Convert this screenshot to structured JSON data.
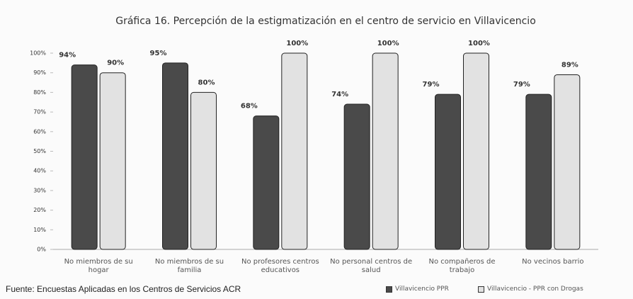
{
  "chart_data": {
    "type": "bar",
    "title": "Gráfica 16. Percepción de la estigmatización en el centro de servicio en Villavicencio",
    "categories": [
      "No miembros de su hogar",
      "No miembros de su familia",
      "No profesores centros educativos",
      "No personal centros de salud",
      "No compañeros de trabajo",
      "No vecinos barrio"
    ],
    "series": [
      {
        "name": "Villavicencio PPR",
        "color": "#4a4a4a",
        "values": [
          94,
          95,
          68,
          74,
          79,
          79
        ],
        "value_labels": [
          "94%",
          "95%",
          "68%",
          "74%",
          "79%",
          "79%"
        ]
      },
      {
        "name": "Villavicencio - PPR con Drogas",
        "color": "#e2e2e2",
        "values": [
          90,
          80,
          100,
          100,
          100,
          89
        ],
        "value_labels": [
          "90%",
          "80%",
          "100%",
          "100%",
          "100%",
          "89%"
        ]
      }
    ],
    "ylim": [
      0,
      100
    ],
    "yticks": [
      {
        "value": 0,
        "label": "0%"
      },
      {
        "value": 10,
        "label": "10%"
      },
      {
        "value": 20,
        "label": "20%"
      },
      {
        "value": 30,
        "label": "30%"
      },
      {
        "value": 40,
        "label": "40%"
      },
      {
        "value": 50,
        "label": "50%"
      },
      {
        "value": 60,
        "label": "60%"
      },
      {
        "value": 70,
        "label": "70%"
      },
      {
        "value": 80,
        "label": "80%"
      },
      {
        "value": 90,
        "label": "90%"
      },
      {
        "value": 100,
        "label": "100%"
      }
    ],
    "footer": "Fuente: Encuestas Aplicadas en los Centros de Servicios ACR"
  }
}
